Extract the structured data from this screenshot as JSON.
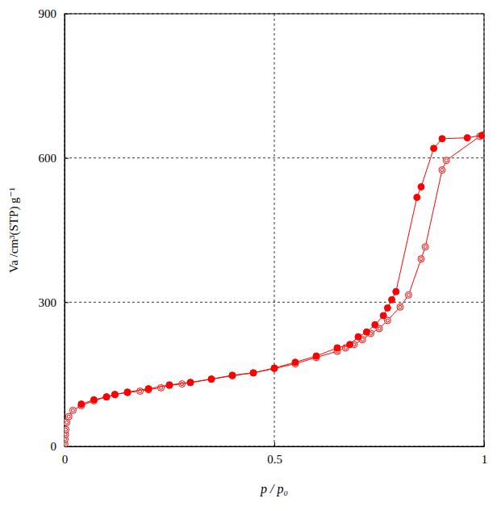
{
  "chart_data": {
    "type": "line",
    "x_label": "p / p₀",
    "y_label": "Va /cm³(STP) g⁻¹",
    "xlim": [
      0,
      1
    ],
    "xticks": [
      0,
      0.5,
      1
    ],
    "ylim": [
      0,
      900
    ],
    "yticks": [
      0,
      300,
      600,
      900
    ],
    "grid": true,
    "series": [
      {
        "color": "#ff0000",
        "marker": "bullseye",
        "line_style": "solid",
        "x": [
          0.0005,
          0.001,
          0.002,
          0.003,
          0.005,
          0.01,
          0.02,
          0.04,
          0.07,
          0.1,
          0.12,
          0.15,
          0.18,
          0.2,
          0.23,
          0.25,
          0.28,
          0.3,
          0.35,
          0.4,
          0.45,
          0.5,
          0.55,
          0.6,
          0.65,
          0.67,
          0.69,
          0.71,
          0.73,
          0.75,
          0.77,
          0.8,
          0.82,
          0.85,
          0.86,
          0.9,
          0.91,
          0.99,
          1.0
        ],
        "values": [
          5,
          15,
          25,
          35,
          50,
          62,
          75,
          85,
          95,
          103,
          108,
          112,
          115,
          118,
          122,
          127,
          130,
          133,
          140,
          147,
          153,
          162,
          172,
          185,
          198,
          205,
          212,
          222,
          235,
          245,
          262,
          290,
          315,
          390,
          415,
          575,
          595,
          645,
          648
        ]
      },
      {
        "color": "#ff0000",
        "marker": "circle",
        "line_style": "solid",
        "x": [
          0.995,
          0.96,
          0.9,
          0.88,
          0.85,
          0.84,
          0.79,
          0.78,
          0.77,
          0.76,
          0.74,
          0.72,
          0.7,
          0.68,
          0.65,
          0.6,
          0.55,
          0.5,
          0.45,
          0.4,
          0.35,
          0.3,
          0.25,
          0.2,
          0.15,
          0.12,
          0.1,
          0.07,
          0.04
        ],
        "values": [
          647,
          642,
          640,
          620,
          540,
          518,
          322,
          305,
          288,
          272,
          253,
          238,
          228,
          212,
          205,
          188,
          175,
          163,
          153,
          148,
          140,
          133,
          128,
          120,
          113,
          108,
          103,
          97,
          88
        ]
      }
    ]
  }
}
